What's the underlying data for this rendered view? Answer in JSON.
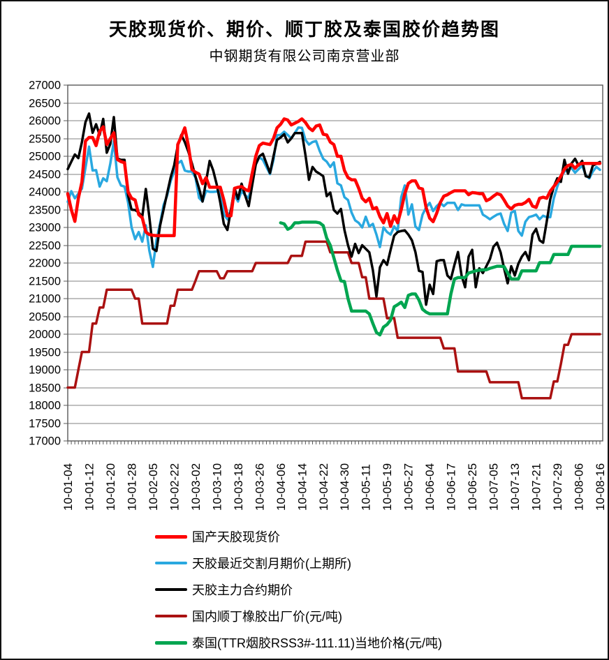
{
  "chart_data": {
    "type": "line",
    "title": "天胶现货价、期价、顺丁胶及泰国胶价趋势图",
    "subtitle": "中钢期货有限公司南京营业部",
    "ylabel": "",
    "xlabel": "",
    "y_axis": {
      "min": 17000,
      "max": 27000,
      "step": 500
    },
    "grid": "horizontal-only",
    "legend_position": "bottom-left",
    "total_points": 151,
    "points_per_label": 6,
    "x_labels": [
      "10-01-04",
      "10-01-12",
      "10-01-20",
      "10-01-28",
      "10-02-05",
      "10-02-22",
      "10-03-02",
      "10-03-10",
      "10-03-18",
      "10-03-26",
      "10-04-06",
      "10-04-14",
      "10-04-22",
      "10-04-30",
      "10-05-11",
      "10-05-19",
      "10-05-27",
      "10-06-04",
      "10-06-17",
      "10-06-25",
      "10-07-05",
      "10-07-13",
      "10-07-21",
      "10-07-29",
      "10-08-06",
      "10-08-16"
    ],
    "series": [
      {
        "id": "spot",
        "name": "国产天胶现货价",
        "color": "#FF0000",
        "width": 4.5,
        "start_index": 0,
        "values": [
          23950,
          23500,
          23170,
          23820,
          24280,
          25430,
          25530,
          25530,
          25300,
          25700,
          25830,
          25330,
          25500,
          25660,
          24910,
          24850,
          24820,
          24000,
          23820,
          23770,
          23360,
          23270,
          22870,
          22800,
          22780,
          22770,
          22770,
          22770,
          22770,
          22770,
          22770,
          25330,
          25550,
          25800,
          25300,
          24630,
          24550,
          24500,
          24230,
          24400,
          24130,
          24130,
          24130,
          24130,
          23770,
          23330,
          23330,
          24100,
          24130,
          24150,
          24070,
          24030,
          24530,
          25000,
          25300,
          25370,
          25350,
          25330,
          25500,
          25800,
          25900,
          26050,
          26020,
          25880,
          25930,
          25980,
          26050,
          25950,
          25800,
          25720,
          25850,
          25880,
          25620,
          25600,
          25400,
          25330,
          25000,
          25000,
          24600,
          24400,
          24340,
          24340,
          24100,
          23820,
          23720,
          23820,
          23520,
          23560,
          23300,
          23130,
          23390,
          23030,
          23330,
          23130,
          23500,
          23950,
          24240,
          24310,
          24310,
          24110,
          24080,
          23560,
          23260,
          23160,
          23400,
          23700,
          23880,
          23920,
          23980,
          24030,
          24030,
          24030,
          24030,
          23920,
          23980,
          23970,
          23950,
          23950,
          23750,
          23800,
          23880,
          23950,
          23920,
          23770,
          23600,
          23520,
          23620,
          23650,
          23650,
          23700,
          23790,
          23600,
          23560,
          23820,
          23850,
          23820,
          24020,
          24150,
          24280,
          24440,
          24640,
          24740,
          24770,
          24660,
          24770,
          24800,
          24800,
          24800,
          24800,
          24800,
          24800
        ]
      },
      {
        "id": "nearby_futures",
        "name": "天胶最近交割月期价(上期所)",
        "color": "#29A8E0",
        "width": 3.5,
        "start_index": 0,
        "values": [
          23720,
          24020,
          23820,
          23950,
          24090,
          24680,
          25270,
          24600,
          24610,
          24150,
          24380,
          24300,
          24800,
          25430,
          24410,
          24180,
          24150,
          23700,
          23000,
          22670,
          22870,
          22600,
          23060,
          22350,
          21890,
          22640,
          23100,
          23630,
          23890,
          24300,
          24570,
          24800,
          24870,
          24600,
          24570,
          24570,
          24400,
          23830,
          23730,
          24030,
          24000,
          24000,
          24010,
          24000,
          23370,
          23230,
          23500,
          23900,
          23730,
          24030,
          23900,
          23830,
          24300,
          24770,
          24970,
          24900,
          24700,
          24500,
          24900,
          25590,
          25600,
          25690,
          25600,
          25500,
          25650,
          25810,
          25800,
          25460,
          25330,
          25400,
          25430,
          25150,
          24930,
          24850,
          24700,
          24830,
          24240,
          24180,
          23850,
          23770,
          23420,
          23200,
          23130,
          23000,
          23300,
          23030,
          23100,
          22800,
          22450,
          23000,
          22870,
          22800,
          23030,
          22900,
          23850,
          24180,
          23360,
          23650,
          23030,
          22930,
          23360,
          23560,
          23690,
          23460,
          23600,
          23690,
          23600,
          23690,
          23690,
          23690,
          23490,
          23650,
          23620,
          23620,
          23620,
          23620,
          23620,
          23360,
          23300,
          23230,
          23300,
          23360,
          23390,
          23100,
          22900,
          23420,
          23460,
          22900,
          22770,
          23160,
          23290,
          23320,
          23360,
          23230,
          23330,
          23290,
          23290,
          23820,
          24150,
          24410,
          24570,
          24620,
          24670,
          24540,
          24640,
          24740,
          24470,
          24380,
          24570,
          24700,
          24620
        ]
      },
      {
        "id": "main_futures",
        "name": "天胶主力合约期价",
        "color": "#000000",
        "width": 3.5,
        "start_index": 0,
        "values": [
          24640,
          24850,
          25050,
          24950,
          25400,
          25960,
          26200,
          25660,
          25900,
          25600,
          26050,
          25100,
          25350,
          26100,
          24940,
          24900,
          24900,
          23900,
          23500,
          23490,
          23420,
          23300,
          24080,
          23300,
          22400,
          22340,
          23040,
          23500,
          23950,
          24400,
          24750,
          25300,
          25600,
          25400,
          25130,
          24800,
          24430,
          24100,
          23730,
          24300,
          24870,
          24600,
          24200,
          23700,
          23100,
          22930,
          23500,
          24100,
          23800,
          24230,
          23900,
          23600,
          24200,
          24770,
          25000,
          25070,
          24800,
          24530,
          25000,
          25460,
          25530,
          25620,
          25390,
          25500,
          25650,
          25650,
          25655,
          25030,
          24340,
          24700,
          24570,
          24510,
          24440,
          23880,
          23980,
          23490,
          23390,
          23520,
          22930,
          22500,
          22180,
          22540,
          22280,
          22500,
          22400,
          22300,
          21800,
          21060,
          21880,
          22080,
          21950,
          22370,
          22770,
          22870,
          22900,
          22920,
          22800,
          22640,
          22310,
          21780,
          21750,
          20830,
          21390,
          21130,
          22050,
          22080,
          22080,
          21650,
          21550,
          21950,
          22310,
          21650,
          21320,
          22180,
          22370,
          21320,
          21850,
          21720,
          21910,
          22110,
          22460,
          22570,
          22300,
          21850,
          21430,
          21910,
          21650,
          21980,
          22180,
          22310,
          22080,
          22800,
          22960,
          22640,
          22570,
          23160,
          23790,
          24150,
          24380,
          24280,
          24900,
          24510,
          24800,
          24930,
          24740,
          24870,
          24440,
          24410,
          24740,
          24790,
          24840
        ]
      },
      {
        "id": "br_rubber",
        "name": "国内顺丁橡胶出厂价(元/吨)",
        "color": "#AA1111",
        "width": 3.5,
        "start_index": 0,
        "values": [
          18500,
          18500,
          18500,
          19000,
          19500,
          19500,
          19500,
          20300,
          20300,
          20750,
          20750,
          21250,
          21250,
          21250,
          21250,
          21250,
          21250,
          21250,
          21250,
          21000,
          21000,
          20300,
          20300,
          20300,
          20300,
          20300,
          20300,
          20300,
          20300,
          20800,
          20800,
          21250,
          21250,
          21250,
          21250,
          21250,
          21500,
          21770,
          21770,
          21770,
          21770,
          21770,
          21770,
          21570,
          21570,
          21770,
          21770,
          21770,
          21770,
          21770,
          21770,
          21770,
          21770,
          22000,
          22000,
          22000,
          22000,
          22000,
          22000,
          22000,
          22000,
          22000,
          22000,
          22200,
          22200,
          22200,
          22200,
          22600,
          22600,
          22600,
          22600,
          22600,
          22600,
          22600,
          22300,
          22300,
          22300,
          22300,
          22300,
          22300,
          22000,
          22000,
          22000,
          21600,
          21600,
          21000,
          21000,
          21000,
          21000,
          21000,
          20450,
          20450,
          20450,
          19900,
          19900,
          19900,
          19900,
          19900,
          19900,
          19900,
          19900,
          19900,
          19900,
          19900,
          19900,
          19900,
          19600,
          19600,
          19600,
          19600,
          18950,
          18950,
          18950,
          18950,
          18950,
          18950,
          18950,
          18950,
          18950,
          18650,
          18650,
          18650,
          18650,
          18650,
          18650,
          18650,
          18650,
          18650,
          18200,
          18200,
          18200,
          18200,
          18200,
          18200,
          18200,
          18200,
          18200,
          18670,
          18670,
          19160,
          19700,
          19700,
          20000,
          20000,
          20000,
          20000,
          20000,
          20000,
          20000,
          20000,
          20000
        ]
      },
      {
        "id": "thai_rss3",
        "name": "泰国(TTR烟胶RSS3#-111.11)当地价格(元/吨)",
        "color": "#00A550",
        "width": 4.5,
        "start_index": 60,
        "values": [
          23130,
          23100,
          22950,
          23000,
          23130,
          23130,
          23150,
          23150,
          23150,
          23150,
          23150,
          23130,
          23050,
          22700,
          22500,
          22150,
          21800,
          21500,
          21480,
          21000,
          20650,
          20650,
          20650,
          20650,
          20650,
          20570,
          20300,
          20050,
          19980,
          20200,
          20270,
          20400,
          20770,
          20830,
          20900,
          20750,
          21090,
          21130,
          21130,
          20960,
          20700,
          20620,
          20570,
          20570,
          20570,
          20570,
          20570,
          20570,
          21130,
          21550,
          21590,
          21590,
          21590,
          21720,
          21750,
          21780,
          21800,
          21810,
          21810,
          21850,
          21880,
          21910,
          21910,
          21900,
          21720,
          21550,
          21550,
          21550,
          21780,
          21780,
          21780,
          21780,
          21780,
          22010,
          22010,
          22010,
          22010,
          22240,
          22240,
          22240,
          22240,
          22240,
          22470,
          22470,
          22470,
          22470,
          22470,
          22470,
          22470,
          22470,
          22470
        ]
      }
    ],
    "colors": {
      "gridline": "#808080",
      "plot_border": "#595959",
      "tick": "#595959",
      "text": "#000000"
    }
  }
}
